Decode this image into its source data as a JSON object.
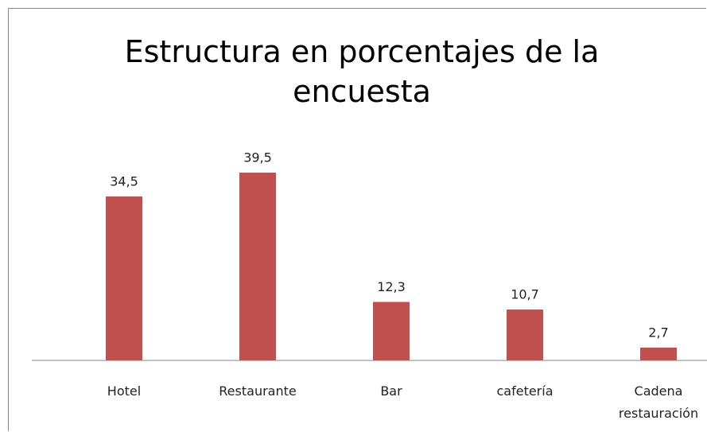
{
  "chart_data": {
    "type": "bar",
    "title": "Estructura en porcentajes de la encuesta",
    "categories": [
      "Hotel",
      "Restaurante",
      "Bar",
      "cafetería",
      "Cadena restauración"
    ],
    "values": [
      34.5,
      39.5,
      12.3,
      10.7,
      2.7
    ],
    "value_labels": [
      "34,5",
      "39,5",
      "12,3",
      "10,7",
      "2,7"
    ],
    "color": "#c0504d"
  }
}
